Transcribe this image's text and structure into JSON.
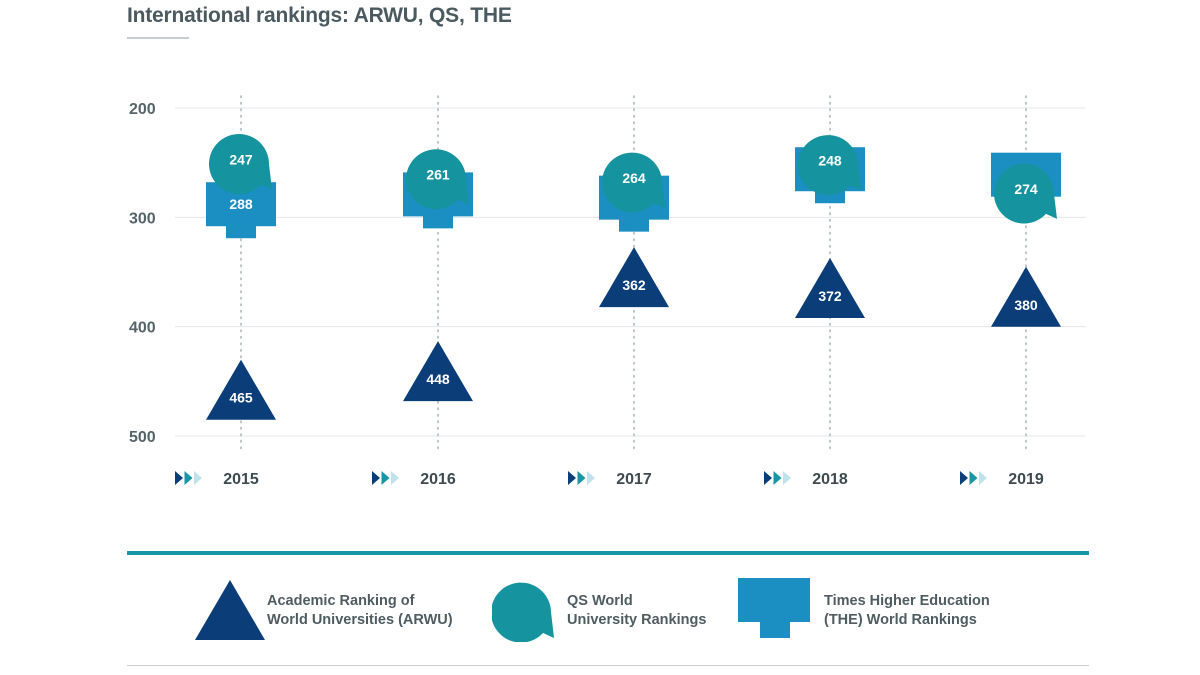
{
  "chart_data": {
    "type": "scatter",
    "title": "International rankings: ARWU, QS, THE",
    "xlabel": "",
    "ylabel": "",
    "ylim": [
      200,
      500
    ],
    "y_inverted": true,
    "y_ticks": [
      200,
      300,
      400,
      500
    ],
    "grid": true,
    "categories": [
      "2015",
      "2016",
      "2017",
      "2018",
      "2019"
    ],
    "series": [
      {
        "key": "arwu",
        "name": "Academic Ranking of World Universities (ARWU)",
        "marker": "triangle",
        "color": "#0b3d78",
        "values": [
          465,
          448,
          362,
          372,
          380
        ]
      },
      {
        "key": "qs",
        "name": "QS World University Rankings",
        "marker": "speech-bubble",
        "color": "#15939f",
        "values": [
          247,
          261,
          264,
          248,
          274
        ]
      },
      {
        "key": "the",
        "name": "Times Higher Education (THE) World Rankings",
        "marker": "tab-rectangle",
        "color": "#1b8fc2",
        "values": [
          288,
          279,
          282,
          256,
          261
        ]
      }
    ],
    "legend": {
      "placement": "bottom",
      "items": [
        {
          "line1": "Academic Ranking of",
          "line2": "World Universities (ARWU)"
        },
        {
          "line1": "QS World",
          "line2": "University Rankings"
        },
        {
          "line1": "Times Higher Education",
          "line2": "(THE) World Rankings"
        }
      ]
    }
  }
}
